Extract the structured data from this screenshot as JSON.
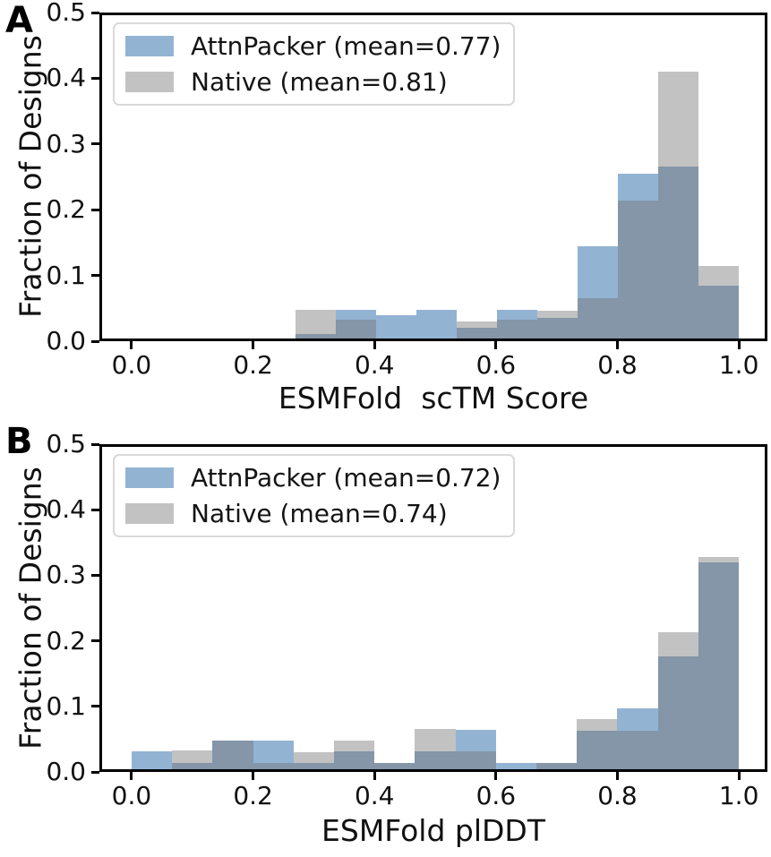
{
  "figure": {
    "background": "#ffffff",
    "panel_letters": {
      "a": "A",
      "b": "B"
    }
  },
  "colors": {
    "attnpacker_blue": "#93b3d3",
    "native_gray": "#c2c2c2",
    "overlap": "#8496a8",
    "axis": "#000000",
    "legend_border": "#d9d9d9"
  },
  "chart_data": [
    {
      "type": "bar",
      "subtype": "overlapping-histogram",
      "panel": "A",
      "xlabel": "ESMFold  scTM Score",
      "ylabel": "Fraction of Designs",
      "xlim": [
        -0.053,
        1.047
      ],
      "ylim": [
        0,
        0.5
      ],
      "xticks": [
        0.0,
        0.2,
        0.4,
        0.6,
        0.8,
        1.0
      ],
      "xtick_labels": [
        "0.0",
        "0.2",
        "0.4",
        "0.6",
        "0.8",
        "1.0"
      ],
      "yticks": [
        0.0,
        0.1,
        0.2,
        0.3,
        0.4,
        0.5
      ],
      "ytick_labels": [
        "0.0",
        "0.1",
        "0.2",
        "0.3",
        "0.4",
        "0.5"
      ],
      "grid": false,
      "legend_position": "upper left",
      "bin_start": 0.27,
      "bin_width": 0.066364,
      "series": [
        {
          "name": "AttnPacker (mean=0.77)",
          "mean": 0.77,
          "color": "#93b3d3",
          "values": [
            0.011,
            0.048,
            0.04,
            0.048,
            0.02,
            0.048,
            0.035,
            0.145,
            0.255,
            0.266,
            0.085
          ]
        },
        {
          "name": "Native (mean=0.81)",
          "mean": 0.81,
          "color": "#c2c2c2",
          "values": [
            0.048,
            0.033,
            0.0,
            0.0,
            0.03,
            0.033,
            0.046,
            0.065,
            0.214,
            0.41,
            0.114
          ]
        }
      ],
      "overlap_color": "#8496a8"
    },
    {
      "type": "bar",
      "subtype": "overlapping-histogram",
      "panel": "B",
      "xlabel": "ESMFold plDDT",
      "ylabel": "Fraction of Designs",
      "xlim": [
        -0.053,
        1.047
      ],
      "ylim": [
        0,
        0.5
      ],
      "xticks": [
        0.0,
        0.2,
        0.4,
        0.6,
        0.8,
        1.0
      ],
      "xtick_labels": [
        "0.0",
        "0.2",
        "0.4",
        "0.6",
        "0.8",
        "1.0"
      ],
      "yticks": [
        0.0,
        0.1,
        0.2,
        0.3,
        0.4,
        0.5
      ],
      "ytick_labels": [
        "0.0",
        "0.1",
        "0.2",
        "0.3",
        "0.4",
        "0.5"
      ],
      "grid": false,
      "legend_position": "upper left",
      "bin_start": 0.0,
      "bin_width": 0.066667,
      "series": [
        {
          "name": "AttnPacker (mean=0.72)",
          "mean": 0.72,
          "color": "#93b3d3",
          "values": [
            0.031,
            0.013,
            0.048,
            0.048,
            0.014,
            0.031,
            0.014,
            0.031,
            0.064,
            0.013,
            0.013,
            0.063,
            0.097,
            0.176,
            0.32
          ]
        },
        {
          "name": "Native (mean=0.74)",
          "mean": 0.74,
          "color": "#c2c2c2",
          "values": [
            0.0,
            0.033,
            0.048,
            0.013,
            0.03,
            0.048,
            0.014,
            0.065,
            0.031,
            0.0,
            0.013,
            0.081,
            0.063,
            0.213,
            0.328
          ]
        }
      ],
      "overlap_color": "#8496a8"
    }
  ]
}
